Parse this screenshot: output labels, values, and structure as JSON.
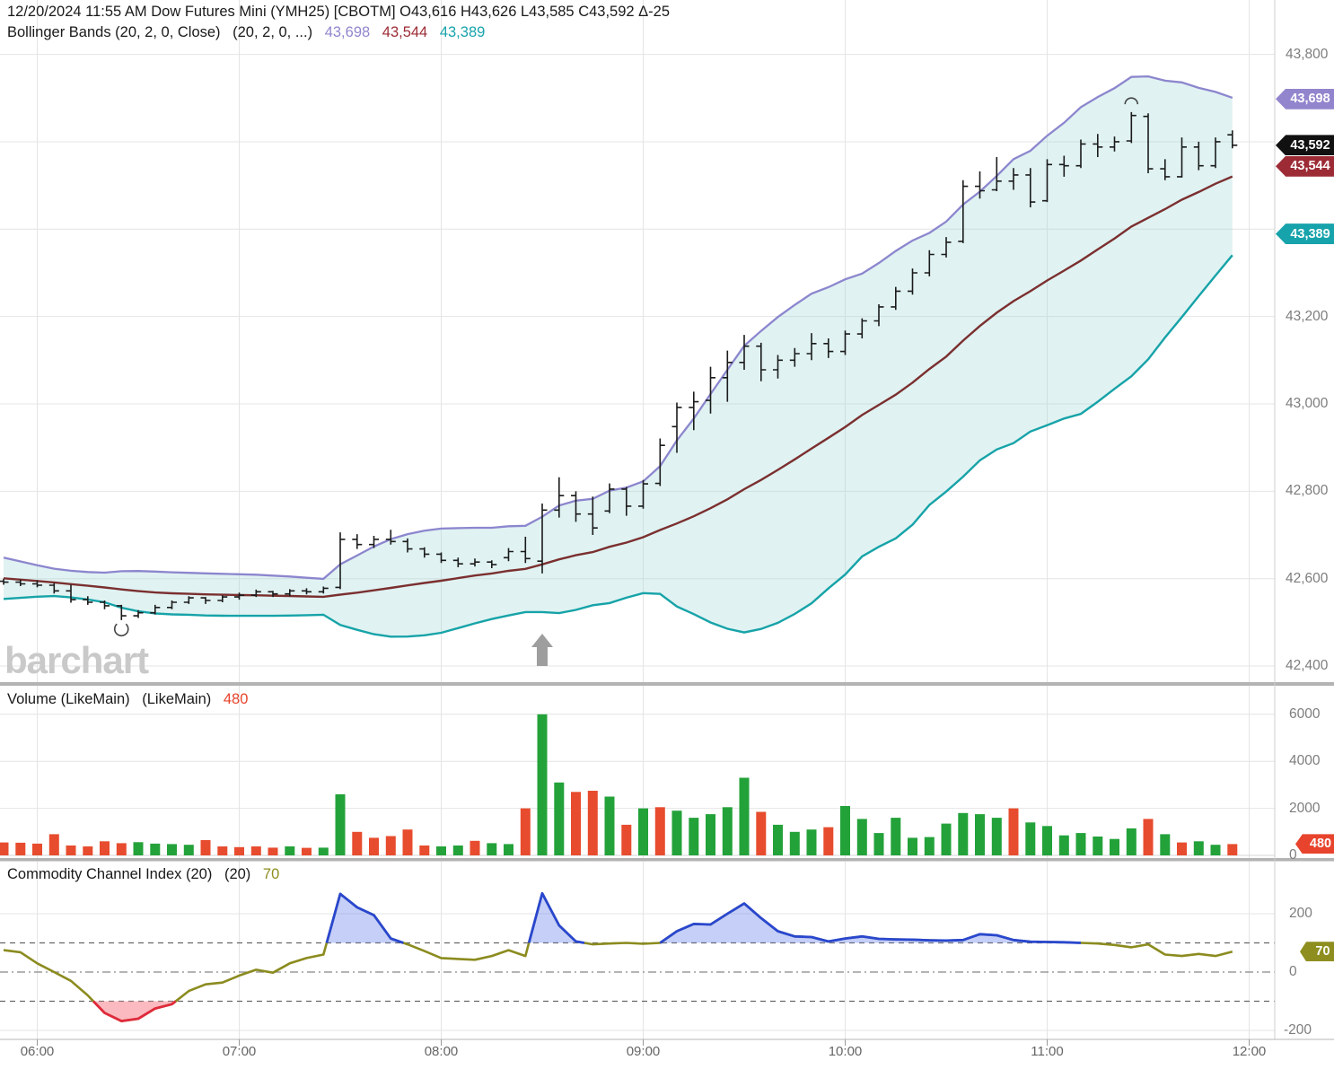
{
  "header": {
    "line1": "12/20/2024 11:55 AM  Dow Futures Mini (YMH25) [CBOTM]  O43,616 H43,626 L43,585 C43,592 Δ-25",
    "bb_label": "Bollinger Bands (20, 2, 0, Close)",
    "bb_params": "(20, 2, 0, ...)",
    "bb_upper": "43,698",
    "bb_mid": "43,544",
    "bb_lower": "43,389"
  },
  "volume_header": {
    "label": "Volume (LikeMain)",
    "label2": "(LikeMain)",
    "value": "480"
  },
  "cci_header": {
    "label": "Commodity Channel Index (20)",
    "label2": "(20)",
    "value": "70"
  },
  "watermark": "barchart",
  "colors": {
    "bb_upper": "#8c86ce",
    "bb_mid": "#7b2f2f",
    "bb_lower": "#16a3a8",
    "bb_fill": "rgba(160,215,215,0.33)",
    "ohlc_bar": "#1b1b1b",
    "vol_up": "#23a23a",
    "vol_down": "#e74c2e",
    "cci_line": "#8b8b1f",
    "cci_above": "#2947cf",
    "cci_below": "#e02a3c",
    "cci_fill_above": "rgba(110,135,238,0.40)",
    "cci_fill_below": "rgba(248,140,150,0.60)",
    "grid": "#e4e4e4",
    "divider": "#b3b3b3",
    "axis_text": "#7d7d7d",
    "tag_upper": "#9285cd",
    "tag_last": "#111111",
    "tag_mid": "#9c2b35",
    "tag_lower": "#17a3ab",
    "tag_vol": "#e8442d",
    "tag_cci": "#8e8e20",
    "arrow": "#9e9e9e",
    "watermark": "#c9c9c9"
  },
  "axes": {
    "price_ticks": [
      43800,
      43200,
      43000,
      42800,
      42600,
      42400
    ],
    "price_grid": [
      43800,
      43600,
      43400,
      43200,
      43000,
      42800,
      42600,
      42400
    ],
    "volume_ticks": [
      6000,
      4000,
      2000,
      0
    ],
    "cci_ticks": [
      200,
      0,
      -200
    ],
    "time_ticks": [
      "06:00",
      "07:00",
      "08:00",
      "09:00",
      "10:00",
      "11:00",
      "12:00"
    ]
  },
  "tags": {
    "price": [
      {
        "name": "upper-band",
        "text": "43,698",
        "value": 43698,
        "color_key": "tag_upper"
      },
      {
        "name": "last-price",
        "text": "43,592",
        "value": 43592,
        "color_key": "tag_last"
      },
      {
        "name": "mid-band",
        "text": "43,544",
        "value": 43544,
        "color_key": "tag_mid"
      },
      {
        "name": "lower-band",
        "text": "43,389",
        "value": 43389,
        "color_key": "tag_lower"
      }
    ],
    "volume": {
      "name": "volume",
      "text": "480",
      "value": 480,
      "color_key": "tag_vol"
    },
    "cci": {
      "name": "cci",
      "text": "70",
      "value": 70,
      "color_key": "tag_cci"
    }
  },
  "chart_data": [
    {
      "type": "ohlc",
      "name": "price",
      "title": "Dow Futures Mini (YMH25) [CBOTM] 5-minute bars",
      "start_time": "05:50",
      "interval_minutes": 5,
      "ylim": [
        42350,
        43830
      ],
      "bars": [
        [
          42594,
          42600,
          42586,
          42592
        ],
        [
          42592,
          42598,
          42583,
          42588
        ],
        [
          42588,
          42596,
          42580,
          42585
        ],
        [
          42585,
          42590,
          42566,
          42572
        ],
        [
          42572,
          42586,
          42545,
          42552
        ],
        [
          42552,
          42560,
          42540,
          42546
        ],
        [
          42546,
          42550,
          42530,
          42538
        ],
        [
          42538,
          42540,
          42505,
          42515
        ],
        [
          42515,
          42528,
          42510,
          42522
        ],
        [
          42522,
          42540,
          42518,
          42534
        ],
        [
          42534,
          42550,
          42530,
          42546
        ],
        [
          42546,
          42560,
          42542,
          42556
        ],
        [
          42556,
          42558,
          42542,
          42550
        ],
        [
          42550,
          42562,
          42546,
          42558
        ],
        [
          42558,
          42568,
          42552,
          42562
        ],
        [
          42562,
          42575,
          42558,
          42570
        ],
        [
          42570,
          42572,
          42558,
          42565
        ],
        [
          42565,
          42576,
          42560,
          42572
        ],
        [
          42572,
          42578,
          42564,
          42570
        ],
        [
          42570,
          42582,
          42566,
          42578
        ],
        [
          42580,
          42706,
          42576,
          42690
        ],
        [
          42690,
          42702,
          42668,
          42678
        ],
        [
          42678,
          42698,
          42670,
          42690
        ],
        [
          42690,
          42712,
          42678,
          42685
        ],
        [
          42685,
          42692,
          42660,
          42668
        ],
        [
          42668,
          42672,
          42648,
          42656
        ],
        [
          42656,
          42660,
          42636,
          42642
        ],
        [
          42642,
          42648,
          42626,
          42634
        ],
        [
          42634,
          42646,
          42628,
          42638
        ],
        [
          42638,
          42642,
          42624,
          42632
        ],
        [
          42648,
          42670,
          42640,
          42662
        ],
        [
          42662,
          42696,
          42636,
          42646
        ],
        [
          42640,
          42772,
          42612,
          42757
        ],
        [
          42757,
          42832,
          42740,
          42790
        ],
        [
          42790,
          42800,
          42730,
          42748
        ],
        [
          42748,
          42788,
          42700,
          42716
        ],
        [
          42755,
          42818,
          42750,
          42805
        ],
        [
          42805,
          42810,
          42744,
          42766
        ],
        [
          42766,
          42826,
          42760,
          42817
        ],
        [
          42818,
          42921,
          42812,
          42905
        ],
        [
          42948,
          43003,
          42888,
          42992
        ],
        [
          42992,
          43028,
          42940,
          43005
        ],
        [
          43008,
          43085,
          42978,
          43060
        ],
        [
          43060,
          43122,
          43005,
          43095
        ],
        [
          43095,
          43158,
          43078,
          43132
        ],
        [
          43132,
          43140,
          43052,
          43078
        ],
        [
          43078,
          43112,
          43058,
          43100
        ],
        [
          43100,
          43128,
          43085,
          43115
        ],
        [
          43115,
          43162,
          43100,
          43138
        ],
        [
          43138,
          43150,
          43105,
          43120
        ],
        [
          43120,
          43168,
          43112,
          43160
        ],
        [
          43160,
          43196,
          43150,
          43190
        ],
        [
          43190,
          43228,
          43178,
          43222
        ],
        [
          43222,
          43268,
          43215,
          43258
        ],
        [
          43258,
          43310,
          43250,
          43300
        ],
        [
          43300,
          43352,
          43292,
          43342
        ],
        [
          43342,
          43382,
          43335,
          43370
        ],
        [
          43372,
          43512,
          43368,
          43498
        ],
        [
          43498,
          43532,
          43470,
          43488
        ],
        [
          43490,
          43565,
          43487,
          43510
        ],
        [
          43510,
          43540,
          43490,
          43524
        ],
        [
          43524,
          43540,
          43450,
          43462
        ],
        [
          43465,
          43560,
          43462,
          43548
        ],
        [
          43548,
          43568,
          43520,
          43545
        ],
        [
          43545,
          43605,
          43540,
          43595
        ],
        [
          43595,
          43618,
          43565,
          43588
        ],
        [
          43588,
          43612,
          43578,
          43600
        ],
        [
          43602,
          43668,
          43597,
          43660
        ],
        [
          43658,
          43665,
          43528,
          43538
        ],
        [
          43538,
          43560,
          43512,
          43520
        ],
        [
          43520,
          43610,
          43518,
          43588
        ],
        [
          43588,
          43600,
          43535,
          43545
        ],
        [
          43545,
          43610,
          43540,
          43600
        ],
        [
          43616,
          43626,
          43585,
          43592
        ]
      ],
      "bollinger": {
        "period": 20,
        "stddev_mult": 2,
        "prehistory_closes": [
          42650,
          42645,
          42638,
          42630,
          42622,
          42615,
          42608,
          42600,
          42592,
          42585,
          42580,
          42576,
          42574,
          42576,
          42580,
          42584,
          42588,
          42590,
          42592
        ],
        "upper_last": 43698,
        "mid_last": 43544,
        "lower_last": 43389
      },
      "markers": [
        {
          "bar_index": 7,
          "price": 42486,
          "shape": "circle-open-top"
        },
        {
          "bar_index": 67,
          "price": 43690,
          "shape": "circle-arc-top"
        }
      ],
      "annotations": [
        {
          "bar_index": 32,
          "shape": "arrow-up"
        }
      ]
    },
    {
      "type": "bar",
      "name": "volume",
      "title": "Volume (LikeMain)",
      "ylim": [
        0,
        7300
      ],
      "values": [
        550,
        540,
        500,
        900,
        420,
        380,
        600,
        520,
        560,
        500,
        480,
        450,
        650,
        380,
        350,
        380,
        330,
        380,
        320,
        330,
        2600,
        1000,
        750,
        820,
        1100,
        420,
        380,
        420,
        620,
        520,
        480,
        2000,
        6000,
        3100,
        2700,
        2750,
        2500,
        1300,
        2000,
        2050,
        1900,
        1600,
        1750,
        2050,
        3300,
        1850,
        1300,
        1000,
        1100,
        1200,
        2100,
        1550,
        950,
        1600,
        750,
        780,
        1350,
        1800,
        1750,
        1600,
        2000,
        1400,
        1250,
        850,
        950,
        800,
        700,
        1150,
        1550,
        900,
        550,
        600,
        450,
        480
      ],
      "colors": [
        "r",
        "r",
        "r",
        "r",
        "r",
        "r",
        "r",
        "r",
        "g",
        "g",
        "g",
        "g",
        "r",
        "r",
        "r",
        "r",
        "r",
        "g",
        "r",
        "g",
        "g",
        "r",
        "r",
        "r",
        "r",
        "r",
        "g",
        "g",
        "r",
        "g",
        "g",
        "r",
        "g",
        "g",
        "r",
        "r",
        "g",
        "r",
        "g",
        "r",
        "g",
        "g",
        "g",
        "g",
        "g",
        "r",
        "g",
        "g",
        "g",
        "r",
        "g",
        "g",
        "g",
        "g",
        "g",
        "g",
        "g",
        "g",
        "g",
        "g",
        "r",
        "g",
        "g",
        "g",
        "g",
        "g",
        "g",
        "g",
        "r",
        "g",
        "r",
        "g",
        "g",
        "r"
      ],
      "last_value": 480
    },
    {
      "type": "line",
      "name": "cci",
      "title": "Commodity Channel Index (20)",
      "ylim": [
        -260,
        320
      ],
      "overbought": 100,
      "oversold": -100,
      "values": [
        75,
        68,
        30,
        0,
        -30,
        -80,
        -140,
        -168,
        -160,
        -125,
        -110,
        -65,
        -42,
        -36,
        -12,
        8,
        -2,
        30,
        48,
        60,
        268,
        222,
        195,
        115,
        95,
        72,
        48,
        45,
        42,
        55,
        75,
        55,
        270,
        160,
        105,
        95,
        98,
        100,
        97,
        100,
        140,
        165,
        163,
        200,
        235,
        185,
        140,
        122,
        120,
        105,
        115,
        122,
        114,
        112,
        111,
        109,
        108,
        110,
        130,
        126,
        110,
        104,
        103,
        102,
        100,
        98,
        93,
        85,
        95,
        60,
        55,
        62,
        55,
        70
      ],
      "last_value": 70
    }
  ]
}
